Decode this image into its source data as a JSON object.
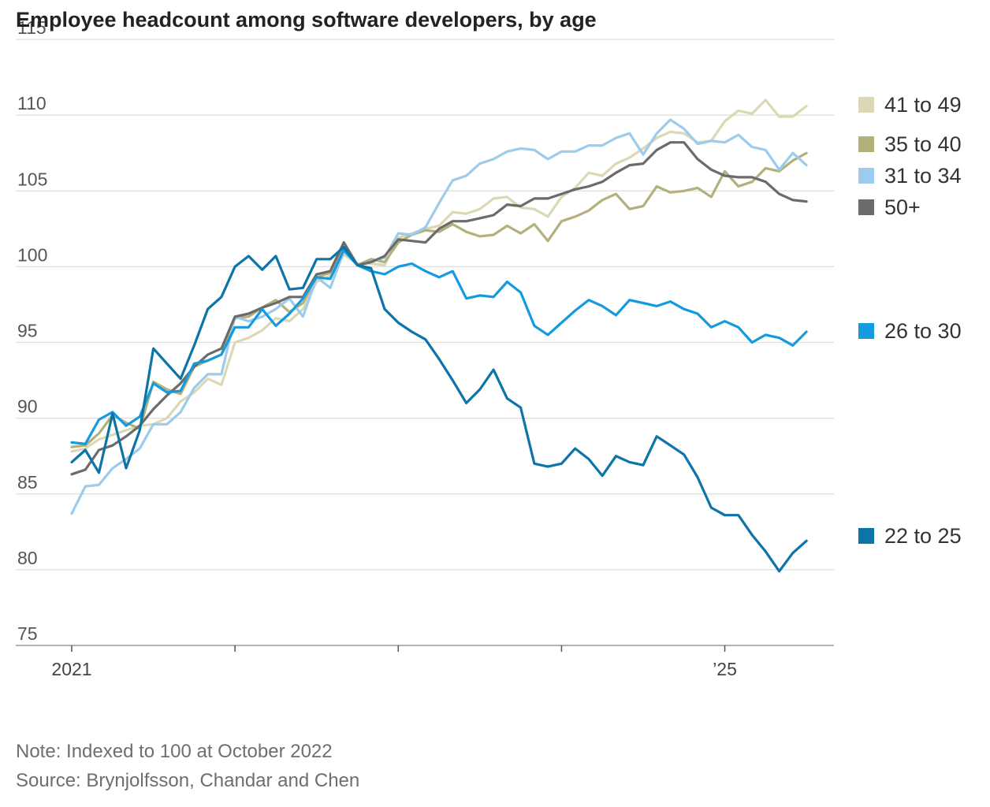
{
  "title": "Employee headcount among software developers, by age",
  "note": "Note: Indexed to 100 at October 2022",
  "source": "Source: Brynjolfsson, Chandar and Chen",
  "chart_data": {
    "type": "line",
    "title": "Employee headcount among software developers, by age",
    "ylim": [
      75,
      115
    ],
    "yticks": [
      75,
      80,
      85,
      90,
      95,
      100,
      105,
      110,
      115
    ],
    "xlim": [
      2021,
      2025.625
    ],
    "xticks": [
      2021,
      2022,
      2023,
      2024,
      2025
    ],
    "xtick_labels": [
      {
        "x": 2021,
        "label": "2021"
      },
      {
        "x": 2025,
        "label": "’25"
      }
    ],
    "grid": true,
    "legend_placement": "right",
    "x_start": 2021,
    "x_step_months": 1,
    "series": [
      {
        "name": "22 to 25",
        "color": "#0d74a8",
        "values": [
          87.1,
          87.9,
          86.4,
          90.3,
          86.7,
          89.2,
          94.6,
          93.6,
          92.6,
          94.8,
          97.2,
          98.0,
          100.0,
          100.7,
          99.8,
          100.7,
          98.5,
          98.6,
          100.5,
          100.5,
          101.3,
          100.1,
          99.9,
          97.2,
          96.3,
          95.7,
          95.2,
          93.9,
          92.5,
          91.0,
          91.9,
          93.2,
          91.3,
          90.7,
          87.0,
          86.8,
          87.0,
          88.0,
          87.3,
          86.2,
          87.5,
          87.1,
          86.9,
          88.8,
          88.2,
          87.6,
          86.1,
          84.1,
          83.6,
          83.6,
          82.3,
          81.2,
          79.9,
          81.1,
          81.9
        ]
      },
      {
        "name": "26 to 30",
        "color": "#149bde",
        "values": [
          88.4,
          88.3,
          89.9,
          90.4,
          89.5,
          90.1,
          92.3,
          91.7,
          91.8,
          93.6,
          93.8,
          94.2,
          96.0,
          96.0,
          97.2,
          96.1,
          96.9,
          97.9,
          99.3,
          99.2,
          101.1,
          100.1,
          99.7,
          99.5,
          100.0,
          100.2,
          99.7,
          99.3,
          99.7,
          97.9,
          98.1,
          98.0,
          99.0,
          98.3,
          96.1,
          95.5,
          96.3,
          97.1,
          97.8,
          97.4,
          96.8,
          97.8,
          97.6,
          97.4,
          97.7,
          97.2,
          96.9,
          96.0,
          96.4,
          96.0,
          95.0,
          95.5,
          95.3,
          94.8,
          95.7
        ]
      },
      {
        "name": "31 to 34",
        "color": "#9ccbec",
        "values": [
          83.7,
          85.5,
          85.6,
          86.7,
          87.3,
          88.0,
          89.6,
          89.6,
          90.4,
          92.0,
          92.9,
          92.9,
          96.7,
          96.4,
          96.7,
          97.2,
          97.9,
          96.7,
          99.3,
          98.6,
          101.0,
          100.1,
          100.3,
          100.6,
          102.2,
          102.1,
          102.6,
          104.2,
          105.7,
          106.0,
          106.8,
          107.1,
          107.6,
          107.8,
          107.7,
          107.1,
          107.6,
          107.6,
          108.0,
          108.0,
          108.5,
          108.8,
          107.4,
          108.8,
          109.7,
          109.1,
          108.1,
          108.3,
          108.2,
          108.7,
          107.9,
          107.7,
          106.4,
          107.5,
          106.7
        ]
      },
      {
        "name": "35 to 40",
        "color": "#b4b07b",
        "values": [
          88.1,
          88.2,
          89.0,
          90.2,
          89.7,
          89.3,
          92.4,
          91.9,
          91.6,
          93.4,
          93.8,
          94.2,
          96.6,
          96.7,
          97.3,
          97.8,
          97.0,
          97.6,
          99.3,
          99.6,
          101.3,
          100.1,
          100.5,
          100.3,
          101.6,
          102.1,
          102.4,
          102.3,
          102.8,
          102.3,
          102.0,
          102.1,
          102.7,
          102.2,
          102.8,
          101.7,
          103.0,
          103.3,
          103.7,
          104.4,
          104.8,
          103.8,
          104.0,
          105.3,
          104.9,
          105.0,
          105.2,
          104.6,
          106.3,
          105.3,
          105.6,
          106.5,
          106.3,
          107.0,
          107.5
        ]
      },
      {
        "name": "41 to 49",
        "color": "#ddd8b4",
        "values": [
          87.8,
          88.0,
          88.6,
          88.9,
          89.2,
          89.5,
          89.6,
          90.0,
          91.1,
          91.7,
          92.6,
          92.2,
          95.0,
          95.3,
          95.8,
          96.6,
          96.4,
          97.2,
          99.0,
          99.4,
          100.8,
          100.2,
          100.2,
          100.1,
          101.9,
          102.2,
          102.5,
          102.7,
          103.6,
          103.5,
          103.8,
          104.5,
          104.6,
          103.9,
          103.8,
          103.3,
          104.6,
          105.2,
          106.2,
          106.0,
          106.8,
          107.2,
          107.8,
          108.5,
          108.9,
          108.8,
          108.2,
          108.3,
          109.6,
          110.3,
          110.1,
          111.0,
          109.9,
          109.9,
          110.6
        ]
      },
      {
        "name": "50+",
        "color": "#6b6b6b",
        "values": [
          86.3,
          86.6,
          87.9,
          88.2,
          88.8,
          89.5,
          90.6,
          91.5,
          92.3,
          93.4,
          94.2,
          94.6,
          96.7,
          96.9,
          97.3,
          97.6,
          98.0,
          98.0,
          99.5,
          99.7,
          101.6,
          100.1,
          100.3,
          100.7,
          101.8,
          101.7,
          101.6,
          102.5,
          103.0,
          103.0,
          103.2,
          103.4,
          104.1,
          104.0,
          104.5,
          104.5,
          104.8,
          105.1,
          105.3,
          105.6,
          106.2,
          106.7,
          106.8,
          107.7,
          108.2,
          108.2,
          107.1,
          106.4,
          106.0,
          105.9,
          105.9,
          105.6,
          104.8,
          104.4,
          104.3
        ]
      }
    ],
    "legend": [
      {
        "name": "41 to 49",
        "color": "#ddd8b4"
      },
      {
        "name": "35 to 40",
        "color": "#b4b07b"
      },
      {
        "name": "31 to 34",
        "color": "#9ccbec"
      },
      {
        "name": "50+",
        "color": "#6b6b6b"
      },
      {
        "name": "26 to 30",
        "color": "#149bde"
      },
      {
        "name": "22 to 25",
        "color": "#0d74a8"
      }
    ]
  }
}
